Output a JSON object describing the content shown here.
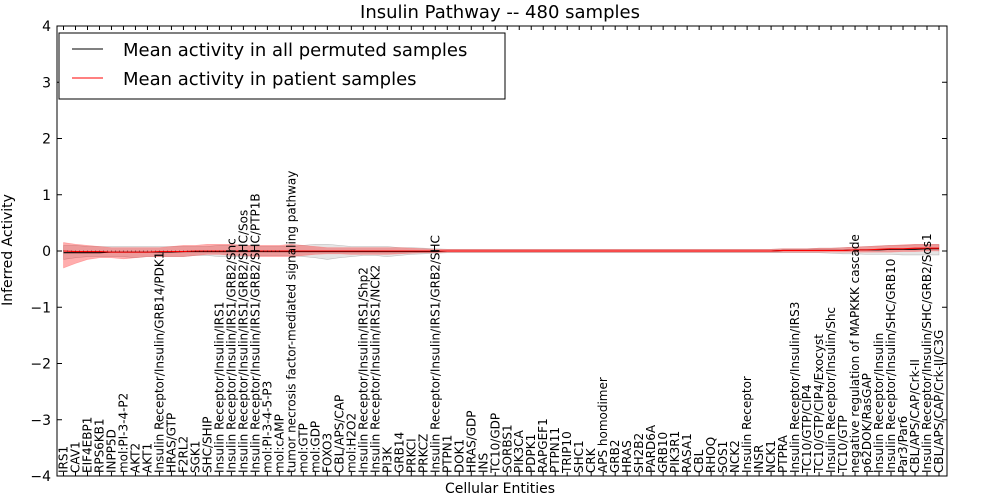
{
  "chart_data": {
    "type": "line",
    "title": "Insulin Pathway -- 480 samples",
    "xlabel": "Cellular Entities",
    "ylabel": "Inferred Activity",
    "ylim": [
      -4,
      4
    ],
    "yticks": [
      4,
      3,
      2,
      1,
      0,
      -1,
      -2,
      -3,
      -4
    ],
    "ytick_labels": [
      "4",
      "3",
      "2",
      "1",
      "0",
      "−1",
      "−2",
      "−3",
      "−4"
    ],
    "grid": false,
    "legend_position": "top-left",
    "categories": [
      "IRS1",
      "CAV1",
      "EIF4EBP1",
      "RPS6KB1",
      "INPP5D",
      "mol:PI-3-4-P2",
      "AKT2",
      "AKT1",
      "Insulin Receptor/Insulin/GRB14/PDK1",
      "HRAS/GTP",
      "F2RL2",
      "SGK1",
      "SHC/SHIP",
      "Insulin Receptor/Insulin/IRS1",
      "Insulin Receptor/Insulin/IRS1/GRB2/Shc",
      "Insulin Receptor/Insulin/IRS1/GRB2/SHC/Sos",
      "Insulin Receptor/Insulin/IRS1/GRB2/SHC/PTP1B",
      "mol:PI-3-4-5-P3",
      "mol:cAMP",
      "tumor necrosis factor-mediated signaling pathway",
      "mol:GTP",
      "mol:GDP",
      "FOXO3",
      "CBL/APS/CAP",
      "mol:H2O2",
      "Insulin Receptor/Insulin/IRS1/Shp2",
      "Insulin Receptor/Insulin/IRS1/NCK2",
      "PI3K",
      "GRB14",
      "PRKCI",
      "PRKCZ",
      "Insulin Receptor/Insulin/IRS1/GRB2/SHC",
      "PTPN1",
      "DOK1",
      "HRAS/GDP",
      "INS",
      "TC10/GDP",
      "SORBS1",
      "PIK3CA",
      "PDPK1",
      "RAPGEF1",
      "PTPN11",
      "TRIP10",
      "SHC1",
      "CRK",
      "APS homodimer",
      "GRB2",
      "HRAS",
      "SH2B2",
      "PARD6A",
      "GRB10",
      "PIK3R1",
      "RASA1",
      "CBL",
      "RHOQ",
      "SOS1",
      "NCK2",
      "Insulin Receptor",
      "INSR",
      "NCK1",
      "PTPRA",
      "Insulin Receptor/Insulin/IRS3",
      "TC10/GTP/CIP4",
      "TC10/GTP/CIP4/Exocyst",
      "Insulin Receptor/Insulin/Shc",
      "TC10/GTP",
      "negative regulation of MAPKKK cascade",
      "p62DOK/RasGAP",
      "Insulin Receptor/Insulin",
      "Insulin Receptor/Insulin/SHC/GRB10",
      "Par3/Par6",
      "CBL/APS/CAP/Crk-II",
      "Insulin Receptor/Insulin/SHC/GRB2/Sos1",
      "CBL/APS/CAP/Crk-II/C3G"
    ],
    "series": [
      {
        "name": "Mean activity in all permuted samples",
        "color": "#000000",
        "values": [
          -0.03,
          -0.03,
          -0.03,
          -0.03,
          -0.02,
          -0.02,
          -0.02,
          -0.02,
          -0.02,
          -0.02,
          -0.01,
          -0.01,
          -0.01,
          -0.01,
          -0.01,
          -0.01,
          -0.01,
          -0.01,
          -0.01,
          -0.01,
          -0.01,
          -0.01,
          -0.01,
          -0.01,
          -0.01,
          -0.01,
          -0.01,
          -0.01,
          -0.01,
          -0.01,
          -0.01,
          -0.01,
          0,
          0,
          0,
          0,
          0,
          0,
          0,
          0,
          0,
          0,
          0,
          0,
          0,
          0,
          0,
          0,
          0,
          0,
          0,
          0,
          0,
          0,
          0,
          0,
          0,
          0,
          0,
          0,
          0.01,
          0.01,
          0.01,
          0.01,
          0.01,
          0.01,
          0.02,
          0.02,
          0.02,
          0.03,
          0.03,
          0.03,
          0.04,
          0.04
        ],
        "band_lower": [
          -0.15,
          -0.12,
          -0.1,
          -0.1,
          -0.1,
          -0.1,
          -0.12,
          -0.1,
          -0.1,
          -0.1,
          -0.1,
          -0.08,
          -0.08,
          -0.1,
          -0.1,
          -0.1,
          -0.08,
          -0.08,
          -0.08,
          -0.08,
          -0.1,
          -0.12,
          -0.15,
          -0.12,
          -0.1,
          -0.08,
          -0.08,
          -0.1,
          -0.08,
          -0.06,
          -0.05,
          -0.04,
          -0.03,
          -0.03,
          -0.03,
          -0.03,
          -0.03,
          -0.03,
          -0.03,
          -0.03,
          -0.03,
          -0.03,
          -0.03,
          -0.03,
          -0.03,
          -0.03,
          -0.03,
          -0.03,
          -0.03,
          -0.03,
          -0.03,
          -0.03,
          -0.03,
          -0.03,
          -0.03,
          -0.03,
          -0.03,
          -0.03,
          -0.03,
          -0.03,
          -0.03,
          -0.03,
          -0.03,
          -0.03,
          -0.04,
          -0.05,
          -0.05,
          -0.06,
          -0.06,
          -0.06,
          -0.07,
          -0.07,
          -0.07,
          -0.07
        ],
        "band_upper": [
          0.1,
          0.1,
          0.08,
          0.08,
          0.08,
          0.08,
          0.08,
          0.08,
          0.08,
          0.08,
          0.08,
          0.08,
          0.08,
          0.1,
          0.1,
          0.1,
          0.08,
          0.08,
          0.08,
          0.08,
          0.1,
          0.12,
          0.12,
          0.1,
          0.08,
          0.08,
          0.08,
          0.08,
          0.06,
          0.06,
          0.05,
          0.04,
          0.03,
          0.03,
          0.03,
          0.03,
          0.03,
          0.03,
          0.03,
          0.03,
          0.03,
          0.03,
          0.03,
          0.03,
          0.03,
          0.03,
          0.03,
          0.03,
          0.03,
          0.03,
          0.03,
          0.03,
          0.03,
          0.03,
          0.03,
          0.03,
          0.03,
          0.03,
          0.03,
          0.03,
          0.04,
          0.04,
          0.04,
          0.05,
          0.05,
          0.06,
          0.07,
          0.08,
          0.09,
          0.1,
          0.1,
          0.11,
          0.11,
          0.11
        ]
      },
      {
        "name": "Mean activity in patient samples",
        "color": "#ff0000",
        "values": [
          0,
          -0.01,
          -0.01,
          -0.01,
          -0.02,
          -0.02,
          -0.02,
          -0.02,
          -0.01,
          -0.01,
          -0.01,
          0,
          0,
          0,
          0,
          0,
          0,
          0,
          0,
          0,
          0,
          0,
          0,
          0,
          0,
          0,
          0,
          0,
          0,
          0,
          0,
          0,
          0,
          0,
          0,
          0,
          0,
          0,
          0,
          0,
          0,
          0,
          0,
          0,
          0,
          0,
          0,
          0,
          0,
          0,
          0,
          0,
          0,
          0,
          0,
          0,
          0,
          0,
          0,
          0,
          0.01,
          0.01,
          0.01,
          0.01,
          0.01,
          0.01,
          0.02,
          0.02,
          0.03,
          0.04,
          0.04,
          0.05,
          0.05,
          0.05
        ],
        "band_lower": [
          -0.3,
          -0.22,
          -0.15,
          -0.12,
          -0.12,
          -0.14,
          -0.12,
          -0.1,
          -0.1,
          -0.1,
          -0.1,
          -0.08,
          -0.06,
          -0.06,
          -0.08,
          -0.08,
          -0.1,
          -0.1,
          -0.1,
          -0.1,
          -0.08,
          -0.06,
          -0.05,
          -0.05,
          -0.06,
          -0.06,
          -0.06,
          -0.06,
          -0.05,
          -0.04,
          -0.03,
          -0.03,
          -0.02,
          -0.02,
          -0.02,
          -0.02,
          -0.02,
          -0.02,
          -0.02,
          -0.02,
          -0.02,
          -0.02,
          -0.02,
          -0.02,
          -0.02,
          -0.02,
          -0.02,
          -0.02,
          -0.02,
          -0.02,
          -0.02,
          -0.02,
          -0.02,
          -0.02,
          -0.02,
          -0.02,
          -0.02,
          -0.02,
          -0.02,
          -0.02,
          -0.02,
          -0.02,
          -0.02,
          -0.02,
          -0.02,
          -0.02,
          -0.02,
          -0.02,
          -0.02,
          -0.02,
          -0.01,
          -0.01,
          0,
          0
        ],
        "band_upper": [
          0.15,
          0.12,
          0.1,
          0.08,
          0.06,
          0.06,
          0.06,
          0.06,
          0.06,
          0.08,
          0.1,
          0.1,
          0.12,
          0.12,
          0.12,
          0.1,
          0.1,
          0.1,
          0.1,
          0.12,
          0.1,
          0.08,
          0.06,
          0.06,
          0.06,
          0.06,
          0.06,
          0.06,
          0.06,
          0.05,
          0.04,
          0.03,
          0.03,
          0.03,
          0.03,
          0.03,
          0.03,
          0.03,
          0.03,
          0.03,
          0.03,
          0.03,
          0.03,
          0.03,
          0.03,
          0.03,
          0.03,
          0.03,
          0.03,
          0.03,
          0.03,
          0.03,
          0.03,
          0.03,
          0.03,
          0.03,
          0.03,
          0.03,
          0.03,
          0.03,
          0.04,
          0.04,
          0.04,
          0.05,
          0.05,
          0.06,
          0.07,
          0.08,
          0.09,
          0.1,
          0.11,
          0.12,
          0.12,
          0.12
        ]
      }
    ]
  }
}
